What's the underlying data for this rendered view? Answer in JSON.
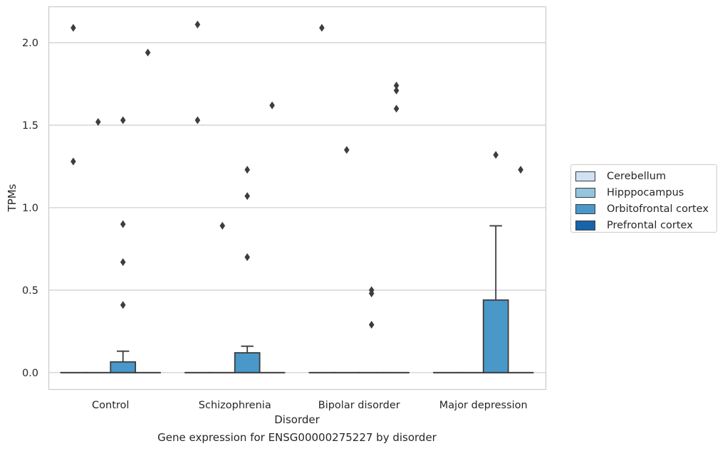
{
  "chart_data": {
    "type": "box",
    "title": "",
    "caption": "Gene expression for ENSG00000275227 by disorder",
    "xlabel": "Disorder",
    "ylabel": "TPMs",
    "ylim": [
      -0.1,
      2.22
    ],
    "yticks": [
      0.0,
      0.5,
      1.0,
      1.5,
      2.0
    ],
    "ytick_labels": [
      "0.0",
      "0.5",
      "1.0",
      "1.5",
      "2.0"
    ],
    "grid": "horizontal",
    "legend_position": "right",
    "categories": [
      "Control",
      "Schizophrenia",
      "Bipolar disorder",
      "Major depression"
    ],
    "series": [
      {
        "name": "Cerebellum",
        "color": "#d0e1f2",
        "boxes": [
          {
            "q1": 0,
            "median": 0,
            "q3": 0,
            "whisker_low": 0,
            "whisker_high": 0,
            "outliers": [
              2.09,
              1.28
            ]
          },
          {
            "q1": 0,
            "median": 0,
            "q3": 0,
            "whisker_low": 0,
            "whisker_high": 0,
            "outliers": [
              2.11,
              1.53
            ]
          },
          {
            "q1": 0,
            "median": 0,
            "q3": 0,
            "whisker_low": 0,
            "whisker_high": 0,
            "outliers": [
              2.09
            ]
          },
          {
            "q1": 0,
            "median": 0,
            "q3": 0,
            "whisker_low": 0,
            "whisker_high": 0,
            "outliers": []
          }
        ]
      },
      {
        "name": "Hipppocampus",
        "color": "#94c4df",
        "boxes": [
          {
            "q1": 0,
            "median": 0,
            "q3": 0,
            "whisker_low": 0,
            "whisker_high": 0,
            "outliers": [
              1.52
            ]
          },
          {
            "q1": 0,
            "median": 0,
            "q3": 0,
            "whisker_low": 0,
            "whisker_high": 0,
            "outliers": [
              0.89
            ]
          },
          {
            "q1": 0,
            "median": 0,
            "q3": 0,
            "whisker_low": 0,
            "whisker_high": 0,
            "outliers": [
              1.35
            ]
          },
          {
            "q1": 0,
            "median": 0,
            "q3": 0,
            "whisker_low": 0,
            "whisker_high": 0,
            "outliers": []
          }
        ]
      },
      {
        "name": "Orbitofrontal cortex",
        "color": "#4a98c9",
        "boxes": [
          {
            "q1": 0,
            "median": 0,
            "q3": 0.065,
            "whisker_low": 0,
            "whisker_high": 0.13,
            "outliers": [
              1.53,
              0.9,
              0.67,
              0.41
            ]
          },
          {
            "q1": 0,
            "median": 0,
            "q3": 0.12,
            "whisker_low": 0,
            "whisker_high": 0.16,
            "outliers": [
              1.23,
              1.07,
              0.7
            ]
          },
          {
            "q1": 0,
            "median": 0,
            "q3": 0,
            "whisker_low": 0,
            "whisker_high": 0,
            "outliers": [
              0.5,
              0.48,
              0.29
            ]
          },
          {
            "q1": 0,
            "median": 0,
            "q3": 0.44,
            "whisker_low": 0,
            "whisker_high": 0.89,
            "outliers": [
              1.32
            ]
          }
        ]
      },
      {
        "name": "Prefrontal cortex",
        "color": "#1764ab",
        "boxes": [
          {
            "q1": 0,
            "median": 0,
            "q3": 0,
            "whisker_low": 0,
            "whisker_high": 0,
            "outliers": [
              1.94
            ]
          },
          {
            "q1": 0,
            "median": 0,
            "q3": 0,
            "whisker_low": 0,
            "whisker_high": 0,
            "outliers": [
              1.62
            ]
          },
          {
            "q1": 0,
            "median": 0,
            "q3": 0,
            "whisker_low": 0,
            "whisker_high": 0,
            "outliers": [
              1.74,
              1.71,
              1.6
            ]
          },
          {
            "q1": 0,
            "median": 0,
            "q3": 0,
            "whisker_low": 0,
            "whisker_high": 0,
            "outliers": [
              1.23
            ]
          }
        ]
      }
    ]
  }
}
